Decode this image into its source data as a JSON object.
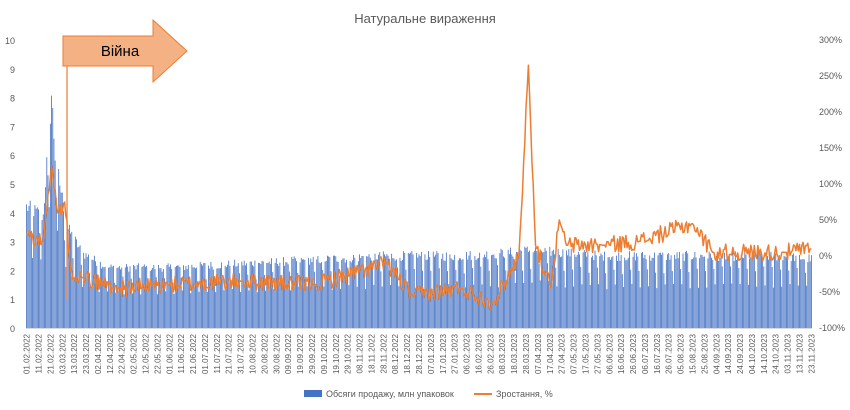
{
  "chart_data": {
    "type": "bar+line",
    "title": "Натуральне вираження",
    "annotation": {
      "label": "Війна",
      "color": "#F4B183",
      "border": "#ED7D31",
      "text_color": "#000000"
    },
    "event_line_date": "07.03.2022",
    "y_left": {
      "min": 0,
      "max": 10,
      "step": 1,
      "ticks": [
        "0",
        "1",
        "2",
        "3",
        "4",
        "5",
        "6",
        "7",
        "8",
        "9",
        "10"
      ]
    },
    "y_right": {
      "min": -100,
      "max": 300,
      "step": 50,
      "ticks": [
        "-100%",
        "-50%",
        "0%",
        "50%",
        "100%",
        "150%",
        "200%",
        "250%",
        "300%"
      ]
    },
    "x_tick_labels": [
      "01.02.2022",
      "11.02.2022",
      "21.02.2022",
      "03.03.2022",
      "13.03.2022",
      "23.03.2022",
      "02.04.2022",
      "12.04.2022",
      "22.04.2022",
      "02.05.2022",
      "12.05.2022",
      "22.05.2022",
      "01.06.2022",
      "11.06.2022",
      "21.06.2022",
      "01.07.2022",
      "11.07.2022",
      "21.07.2022",
      "31.07.2022",
      "10.08.2022",
      "20.08.2022",
      "30.08.2022",
      "09.09.2022",
      "19.09.2022",
      "29.09.2022",
      "09.10.2022",
      "19.10.2022",
      "29.10.2022",
      "08.11.2022",
      "18.11.2022",
      "28.11.2022",
      "08.12.2022",
      "18.12.2022",
      "28.12.2022",
      "07.01.2023",
      "17.01.2023",
      "27.01.2023",
      "06.02.2023",
      "16.02.2023",
      "26.02.2023",
      "08.03.2023",
      "18.03.2023",
      "28.03.2023",
      "07.04.2023",
      "17.04.2023",
      "27.04.2023",
      "07.05.2023",
      "17.05.2023",
      "27.05.2023",
      "06.06.2023",
      "16.06.2023",
      "26.06.2023",
      "06.07.2023",
      "16.07.2023",
      "26.07.2023",
      "05.08.2023",
      "15.08.2023",
      "25.08.2023",
      "04.09.2023",
      "14.09.2023",
      "24.09.2023",
      "04.10.2023",
      "14.10.2023",
      "24.10.2023",
      "03.11.2023",
      "13.11.2023",
      "23.11.2023"
    ],
    "series": [
      {
        "name": "Обсяги продажу, млн упаковок",
        "type": "bar",
        "axis": "left",
        "color": "#4472C4",
        "key_points": [
          [
            "01.02.2022",
            4.2
          ],
          [
            "15.02.2022",
            3.9
          ],
          [
            "22.02.2022",
            8.1
          ],
          [
            "25.02.2022",
            6.0
          ],
          [
            "01.03.2022",
            5.0
          ],
          [
            "07.03.2022",
            3.5
          ],
          [
            "20.03.2022",
            2.6
          ],
          [
            "10.04.2022",
            2.1
          ],
          [
            "01.06.2022",
            2.1
          ],
          [
            "01.09.2022",
            2.3
          ],
          [
            "01.12.2022",
            2.5
          ],
          [
            "01.02.2023",
            2.5
          ],
          [
            "10.03.2023",
            2.6
          ],
          [
            "01.04.2023",
            2.7
          ],
          [
            "01.06.2023",
            2.5
          ],
          [
            "01.09.2023",
            2.5
          ],
          [
            "01.11.2023",
            2.5
          ],
          [
            "23.11.2023",
            2.4
          ]
        ]
      },
      {
        "name": "Зростання, %",
        "type": "line",
        "axis": "right",
        "color": "#ED7D31",
        "key_points": [
          [
            "01.02.2022",
            30
          ],
          [
            "15.02.2022",
            20
          ],
          [
            "22.02.2022",
            125
          ],
          [
            "27.02.2022",
            60
          ],
          [
            "05.03.2022",
            75
          ],
          [
            "10.03.2022",
            -20
          ],
          [
            "20.03.2022",
            -30
          ],
          [
            "20.04.2022",
            -45
          ],
          [
            "01.06.2022",
            -40
          ],
          [
            "01.08.2022",
            -35
          ],
          [
            "01.10.2022",
            -40
          ],
          [
            "01.12.2022",
            -10
          ],
          [
            "22.12.2022",
            -55
          ],
          [
            "01.02.2023",
            -45
          ],
          [
            "01.03.2023",
            -65
          ],
          [
            "22.03.2023",
            0
          ],
          [
            "30.03.2023",
            265
          ],
          [
            "05.04.2023",
            15
          ],
          [
            "18.04.2023",
            -45
          ],
          [
            "25.04.2023",
            50
          ],
          [
            "01.05.2023",
            15
          ],
          [
            "01.06.2023",
            15
          ],
          [
            "01.07.2023",
            20
          ],
          [
            "15.08.2023",
            45
          ],
          [
            "01.09.2023",
            5
          ],
          [
            "01.11.2023",
            5
          ],
          [
            "23.11.2023",
            10
          ]
        ]
      }
    ],
    "legend": {
      "position": "bottom"
    },
    "grid": false
  }
}
